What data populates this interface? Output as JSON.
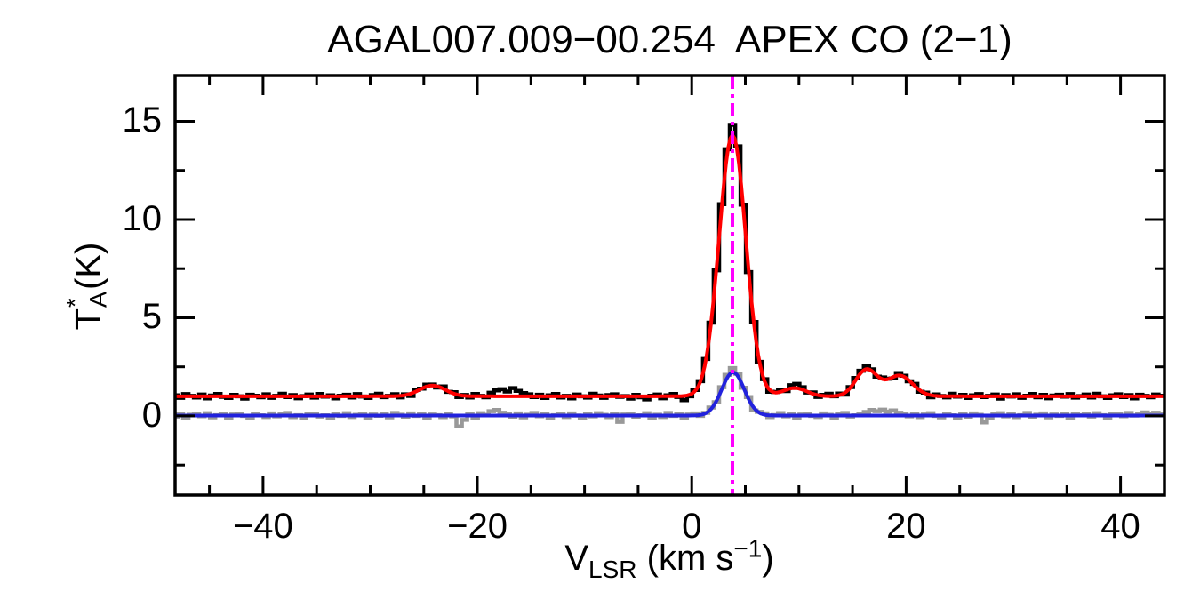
{
  "chart_data": {
    "type": "line",
    "title": "AGAL007.009−00.254  APEX CO (2−1)",
    "xlabel_plain": "V_LSR (km s^-1)",
    "ylabel_plain": "T_A^* (K)",
    "xlim": [
      -48.2,
      44.1
    ],
    "ylim": [
      -4.03,
      17.33
    ],
    "grid": false,
    "legend": "none",
    "background_color": "#FFFFFF",
    "axis_color": "#000000",
    "x_axis": {
      "label_main": "V",
      "label_sub": "LSR",
      "label_unit_pre": " (km s",
      "label_sup": "−1",
      "label_unit_post": ")",
      "ticks": [
        {
          "value": -40,
          "label": "−40"
        },
        {
          "value": -20,
          "label": "−20"
        },
        {
          "value": 0,
          "label": "0"
        },
        {
          "value": 20,
          "label": "20"
        },
        {
          "value": 40,
          "label": "40"
        }
      ],
      "minor_ticks": [
        -45,
        -35,
        -30,
        -25,
        -15,
        -10,
        -5,
        5,
        10,
        15,
        25,
        30,
        35
      ]
    },
    "y_axis": {
      "label_main": "T",
      "label_sup": "*",
      "label_sub": "A",
      "label_unit": " (K)",
      "ticks": [
        {
          "value": 0,
          "label": "0"
        },
        {
          "value": 5,
          "label": "5"
        },
        {
          "value": 10,
          "label": "10"
        },
        {
          "value": 15,
          "label": "15"
        }
      ],
      "minor_ticks": [
        -2.5,
        2.5,
        7.5,
        12.5
      ]
    },
    "marker": {
      "name": "systemic-velocity-line",
      "velocity": 3.8,
      "color": "#FF00FF",
      "pattern": "dash-dot",
      "description": "vertical dash-dot line at the fitted LSR velocity"
    },
    "fits": [
      {
        "name": "red-fit",
        "color": "#FF0000",
        "baseline": 1.0,
        "gaussians": [
          {
            "center": 3.8,
            "amplitude": 13.3,
            "sigma": 1.25
          },
          {
            "center": -24.2,
            "amplitude": 0.55,
            "sigma": 1.2
          },
          {
            "center": 9.6,
            "amplitude": 0.42,
            "sigma": 1.1
          },
          {
            "center": 16.3,
            "amplitude": 1.35,
            "sigma": 1.0
          },
          {
            "center": 19.4,
            "amplitude": 1.05,
            "sigma": 1.2
          }
        ]
      },
      {
        "name": "blue-fit",
        "color": "#2222DD",
        "baseline": 0.02,
        "gaussians": [
          {
            "center": 3.85,
            "amplitude": 2.2,
            "sigma": 1.05
          }
        ]
      }
    ],
    "x_start": -48.2,
    "x_step": 0.5,
    "series": [
      {
        "name": "observed-spectrum-black",
        "style": "histogram",
        "color": "#000000",
        "line_width": 4.5,
        "model": "red-fit",
        "noise": [
          0.05,
          -0.08,
          0.11,
          0.02,
          -0.06,
          0.09,
          -0.11,
          0.04,
          0.12,
          -0.03,
          -0.09,
          0.07,
          0.0,
          -0.12,
          0.08,
          0.03,
          -0.05,
          0.1,
          -0.08,
          0.02,
          0.13,
          -0.04,
          0.06,
          -0.1,
          0.01,
          0.09,
          -0.07,
          0.12,
          -0.02,
          0.05,
          -0.11,
          0.03,
          0.08,
          -0.06,
          0.11,
          -0.01,
          -0.09,
          0.06,
          0.13,
          -0.05,
          0.02,
          0.1,
          -0.08,
          0.04,
          -0.12,
          0.07,
          0.0,
          0.09,
          0.05,
          -0.06,
          0.11,
          -0.03,
          0.07,
          -0.1,
          0.04,
          -0.07,
          0.12,
          0.02,
          -0.05,
          0.18,
          0.3,
          0.36,
          0.24,
          0.42,
          0.28,
          0.16,
          0.1,
          -0.04,
          0.08,
          -0.09,
          0.05,
          0.12,
          -0.06,
          0.02,
          -0.11,
          0.09,
          0.0,
          -0.07,
          0.13,
          0.04,
          -0.08,
          0.06,
          0.1,
          -0.03,
          0.01,
          -0.12,
          0.07,
          -0.05,
          -0.16,
          0.03,
          0.09,
          -0.1,
          0.05,
          0.12,
          -0.04,
          -0.22,
          -0.08,
          0.06,
          0.02,
          0.1,
          0.05,
          -0.06,
          0.12,
          0.3,
          0.52,
          0.45,
          0.1,
          -0.15,
          0.08,
          -0.05,
          0.11,
          -0.08,
          0.03,
          0.09,
          -0.06,
          0.16,
          0.22,
          0.12,
          -0.04,
          0.07,
          -0.09,
          0.05,
          0.12,
          -0.02,
          0.08,
          -0.1,
          0.03,
          0.11,
          0.1,
          0.16,
          0.08,
          -0.05,
          0.09,
          0.02,
          -0.08,
          0.12,
          0.05,
          -0.03,
          0.1,
          -0.07,
          0.04,
          -0.11,
          0.08,
          0.01,
          -0.06,
          0.13,
          -0.02,
          0.07,
          -0.09,
          0.05,
          0.11,
          -0.04,
          0.02,
          0.09,
          -0.12,
          0.06,
          -0.01,
          0.1,
          -0.08,
          0.03,
          0.12,
          -0.05,
          0.07,
          -0.1,
          0.04,
          0.08,
          -0.02,
          0.11,
          -0.07,
          0.01,
          0.09,
          -0.06,
          0.13,
          0.0,
          -0.09,
          0.05,
          0.1,
          -0.04,
          0.06,
          -0.11,
          0.08,
          0.02,
          -0.05,
          0.09,
          0.03
        ]
      },
      {
        "name": "secondary-spectrum-gray",
        "style": "histogram",
        "color": "#999999",
        "line_width": 4.5,
        "model": "blue-fit",
        "noise": [
          -0.06,
          0.1,
          -0.12,
          0.04,
          0.08,
          -0.03,
          0.12,
          -0.09,
          0.02,
          0.07,
          -0.11,
          0.05,
          0.09,
          -0.02,
          -0.13,
          0.08,
          0.01,
          -0.07,
          0.11,
          -0.04,
          0.06,
          0.13,
          -0.08,
          0.02,
          -0.11,
          0.07,
          0.1,
          -0.05,
          0.01,
          -0.14,
          0.09,
          -0.02,
          0.12,
          -0.07,
          0.03,
          0.1,
          -0.12,
          0.05,
          -0.01,
          0.08,
          -0.09,
          0.13,
          0.04,
          -0.06,
          0.11,
          -0.02,
          0.07,
          -0.13,
          0.05,
          0.02,
          -0.08,
          0.1,
          -0.04,
          -0.55,
          -0.22,
          0.06,
          -0.1,
          0.12,
          0.03,
          0.22,
          0.28,
          0.14,
          0.08,
          -0.06,
          0.11,
          -0.09,
          0.04,
          0.13,
          -0.03,
          0.07,
          -0.12,
          0.02,
          0.09,
          -0.07,
          0.11,
          0.0,
          -0.1,
          0.06,
          -0.04,
          0.12,
          0.03,
          -0.08,
          0.1,
          -0.32,
          0.05,
          0.09,
          -0.06,
          0.01,
          0.12,
          -0.11,
          0.04,
          -0.07,
          0.13,
          -0.02,
          0.08,
          -0.12,
          0.05,
          0.1,
          -0.05,
          0.02,
          0.08,
          -0.06,
          0.11,
          0.15,
          0.22,
          0.12,
          -0.05,
          0.09,
          -0.13,
          0.04,
          0.07,
          -0.09,
          0.02,
          0.12,
          -0.04,
          0.08,
          -0.11,
          0.05,
          0.1,
          -0.02,
          -0.07,
          0.11,
          0.03,
          -0.1,
          0.06,
          0.13,
          -0.05,
          0.01,
          0.09,
          0.18,
          0.28,
          0.22,
          0.3,
          0.2,
          0.26,
          0.14,
          0.08,
          -0.04,
          0.1,
          -0.08,
          0.05,
          0.12,
          -0.02,
          -0.09,
          0.07,
          0.01,
          -0.12,
          0.08,
          -0.06,
          0.11,
          0.03,
          -0.35,
          -0.1,
          0.06,
          0.12,
          -0.04,
          0.09,
          -0.08,
          0.02,
          0.13,
          -0.06,
          0.04,
          0.11,
          -0.09,
          0.05,
          -0.02,
          0.1,
          -0.12,
          0.07,
          0.01,
          0.08,
          -0.05,
          0.12,
          0.02,
          -0.1,
          0.06,
          0.09,
          -0.03,
          0.13,
          0.0,
          0.1,
          0.16,
          0.08,
          0.14,
          0.06
        ]
      }
    ]
  }
}
